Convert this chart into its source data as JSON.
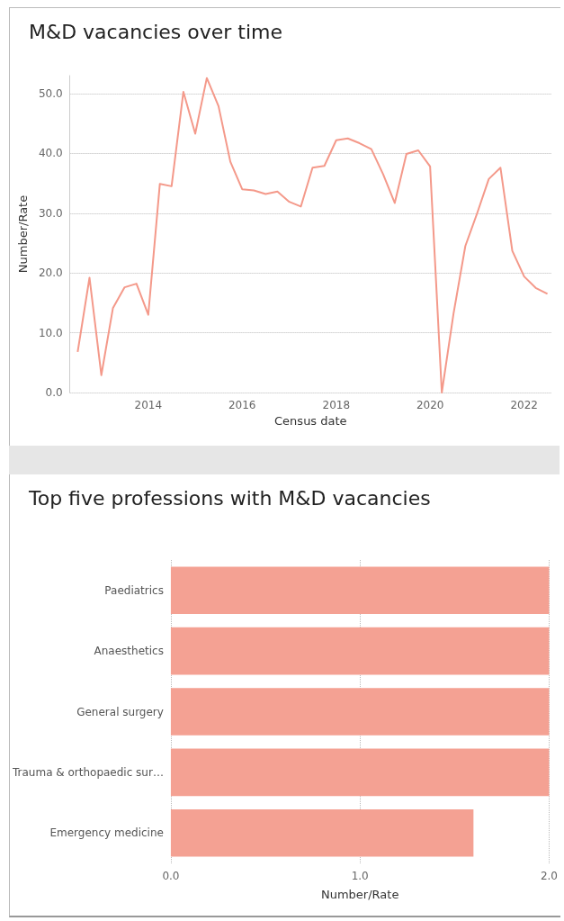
{
  "chart_data": [
    {
      "type": "line",
      "title": "M&D vacancies over time",
      "xlabel": "Census date",
      "ylabel": "Number/Rate",
      "x": [
        "2012-07",
        "2012-10",
        "2013-01",
        "2013-04",
        "2013-07",
        "2013-10",
        "2014-01",
        "2014-04",
        "2014-07",
        "2014-10",
        "2015-01",
        "2015-04",
        "2015-07",
        "2015-10",
        "2016-01",
        "2016-04",
        "2016-07",
        "2016-10",
        "2017-01",
        "2017-04",
        "2017-07",
        "2017-10",
        "2018-01",
        "2018-04",
        "2018-07",
        "2018-10",
        "2019-01",
        "2019-04",
        "2019-07",
        "2019-10",
        "2020-01",
        "2020-04",
        "2020-07",
        "2020-10",
        "2021-01",
        "2021-04",
        "2021-07",
        "2021-10",
        "2022-01",
        "2022-04",
        "2022-07"
      ],
      "series": [
        {
          "color": "#f4998a",
          "values": [
            6.8,
            19.2,
            2.9,
            14.1,
            17.6,
            18.2,
            13.0,
            34.9,
            34.5,
            50.3,
            43.3,
            52.6,
            47.9,
            38.6,
            34.0,
            33.8,
            33.2,
            33.6,
            31.9,
            31.1,
            37.6,
            37.9,
            42.2,
            42.5,
            41.7,
            40.7,
            36.5,
            31.7,
            39.9,
            40.5,
            37.8,
            0,
            13.2,
            24.5,
            30.0,
            35.7,
            37.6,
            23.7,
            19.4,
            17.5,
            16.5
          ]
        }
      ],
      "xlim": [
        "2012-05",
        "2022-08"
      ],
      "xticks": [
        {
          "value": "2014",
          "label": "2014"
        },
        {
          "value": "2016",
          "label": "2016"
        },
        {
          "value": "2018",
          "label": "2018"
        },
        {
          "value": "2020",
          "label": "2020"
        },
        {
          "value": "2022",
          "label": "2022"
        }
      ],
      "ylim": [
        0,
        53
      ],
      "yticks": [
        {
          "value": 0,
          "label": "0.0"
        },
        {
          "value": 10,
          "label": "10.0"
        },
        {
          "value": 20,
          "label": "20.0"
        },
        {
          "value": 30,
          "label": "30.0"
        },
        {
          "value": 40,
          "label": "40.0"
        },
        {
          "value": 50,
          "label": "50.0"
        }
      ],
      "grid": "y",
      "marker": "none",
      "line_style": "solid"
    },
    {
      "type": "bar",
      "orientation": "horizontal",
      "title": "Top five professions with M&D vacancies",
      "xlabel": "Number/Rate",
      "categories": [
        "Paediatrics",
        "Anaesthetics",
        "General surgery",
        "Trauma & orthopaedic sur…",
        "Emergency medicine"
      ],
      "series": [
        {
          "color": "#f4a193",
          "values": [
            2,
            2,
            2,
            2,
            1.6
          ]
        }
      ],
      "xlim": [
        0,
        2
      ],
      "xticks": [
        {
          "value": 0,
          "label": "0.0"
        },
        {
          "value": 1,
          "label": "1.0"
        },
        {
          "value": 2,
          "label": "2.0"
        }
      ],
      "grid": "x"
    }
  ]
}
